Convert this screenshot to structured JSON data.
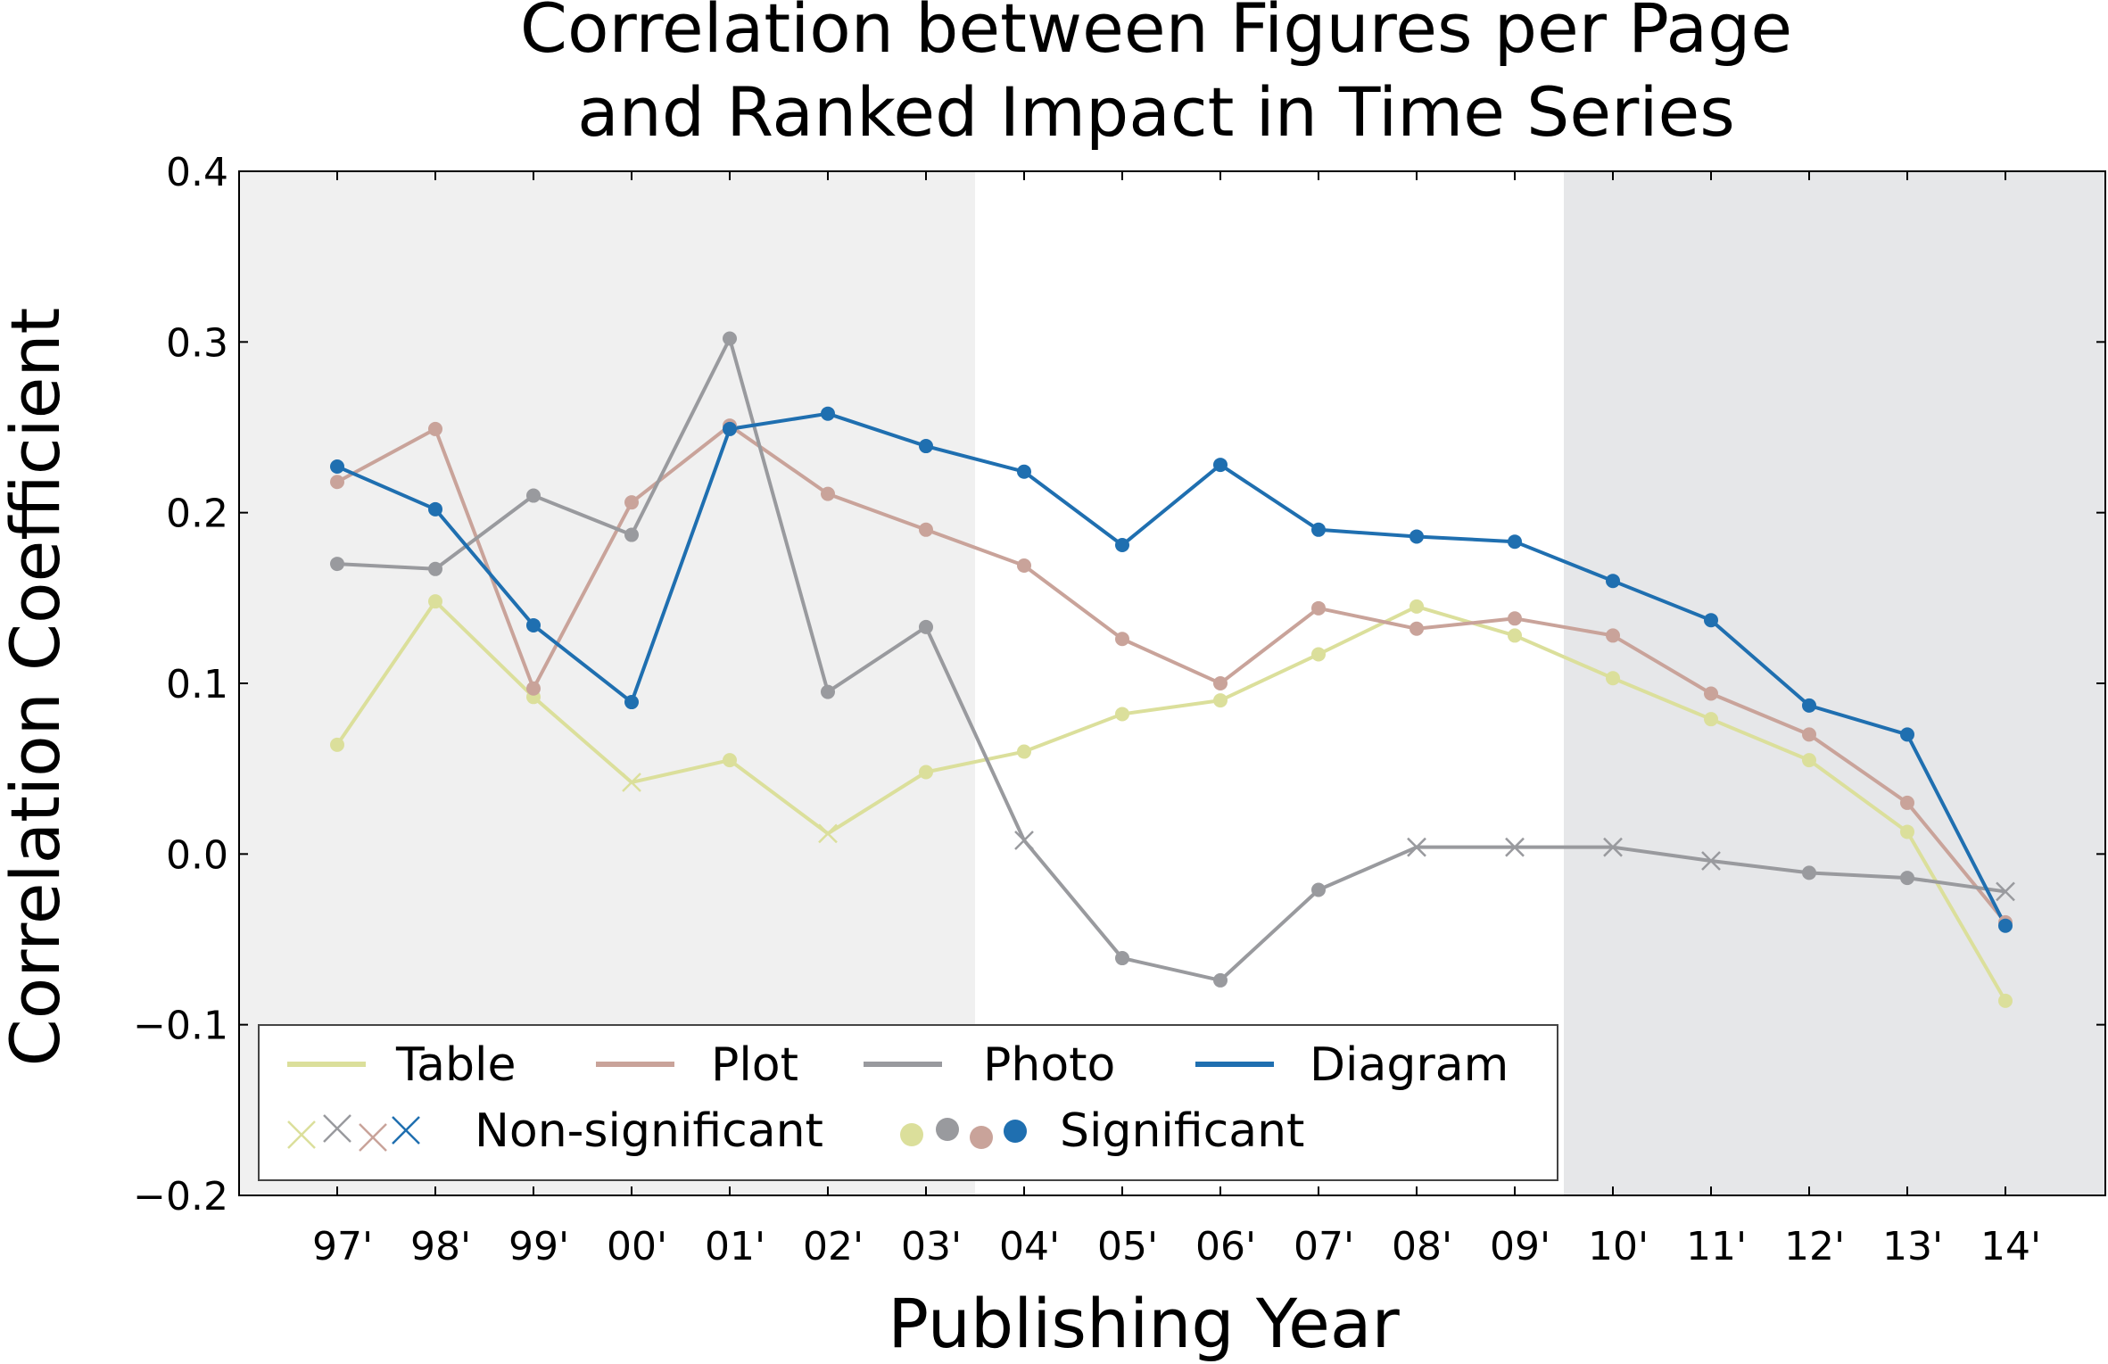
{
  "chart_data": {
    "type": "line",
    "title": [
      "Correlation between Figures per Page",
      "and Ranked Impact in Time Series"
    ],
    "xlabel": "Publishing Year",
    "ylabel": "Correlation Coefficient",
    "categories": [
      "97'",
      "98'",
      "99'",
      "00'",
      "01'",
      "02'",
      "03'",
      "04'",
      "05'",
      "06'",
      "07'",
      "08'",
      "09'",
      "10'",
      "11'",
      "12'",
      "13'",
      "14'"
    ],
    "ylim": [
      -0.2,
      0.4
    ],
    "yticks": [
      0.4,
      0.3,
      0.2,
      0.1,
      0.0,
      -0.1,
      -0.2
    ],
    "ytick_labels": [
      "0.4",
      "0.3",
      "0.2",
      "0.1",
      "0.0",
      "−0.1",
      "−0.2"
    ],
    "grid": false,
    "shaded_regions": [
      {
        "from": "97'",
        "to": "03'",
        "color": "#f0f0f0"
      },
      {
        "from": "10'",
        "to": "14'",
        "color": "#e6e7e9"
      }
    ],
    "series": [
      {
        "name": "Table",
        "color": "#dbdf9b",
        "values": [
          0.064,
          0.148,
          0.092,
          0.042,
          0.055,
          0.012,
          0.048,
          0.06,
          0.082,
          0.09,
          0.117,
          0.145,
          0.128,
          0.103,
          0.079,
          0.055,
          0.013,
          -0.086
        ],
        "significant": [
          true,
          true,
          true,
          false,
          true,
          false,
          true,
          true,
          true,
          true,
          true,
          true,
          true,
          true,
          true,
          true,
          true,
          true
        ]
      },
      {
        "name": "Plot",
        "color": "#c9a39a",
        "values": [
          0.218,
          0.249,
          0.097,
          0.206,
          0.251,
          0.211,
          0.19,
          0.169,
          0.126,
          0.1,
          0.144,
          0.132,
          0.138,
          0.128,
          0.094,
          0.07,
          0.03,
          -0.04
        ],
        "significant": [
          true,
          true,
          true,
          true,
          true,
          true,
          true,
          true,
          true,
          true,
          true,
          true,
          true,
          true,
          true,
          true,
          true,
          true
        ]
      },
      {
        "name": "Photo",
        "color": "#999a9e",
        "values": [
          0.17,
          0.167,
          0.21,
          0.187,
          0.302,
          0.095,
          0.133,
          0.008,
          -0.061,
          -0.074,
          -0.021,
          0.004,
          0.004,
          0.004,
          -0.004,
          -0.011,
          -0.014,
          -0.022
        ],
        "significant": [
          true,
          true,
          true,
          true,
          true,
          true,
          true,
          false,
          true,
          true,
          true,
          false,
          false,
          false,
          false,
          true,
          true,
          false
        ]
      },
      {
        "name": "Diagram",
        "color": "#1f6fb0",
        "values": [
          0.227,
          0.202,
          0.134,
          0.089,
          0.249,
          0.258,
          0.239,
          0.224,
          0.181,
          0.228,
          0.19,
          0.186,
          0.183,
          0.16,
          0.137,
          0.087,
          0.07,
          -0.042
        ],
        "significant": [
          true,
          true,
          true,
          true,
          true,
          true,
          true,
          true,
          true,
          true,
          true,
          true,
          true,
          true,
          true,
          true,
          true,
          true
        ]
      }
    ],
    "legend": {
      "placement": "lower-left",
      "entries": [
        "Table",
        "Plot",
        "Photo",
        "Diagram"
      ],
      "marker_labels": {
        "non_significant": "Non-significant",
        "significant": "Significant"
      }
    }
  }
}
